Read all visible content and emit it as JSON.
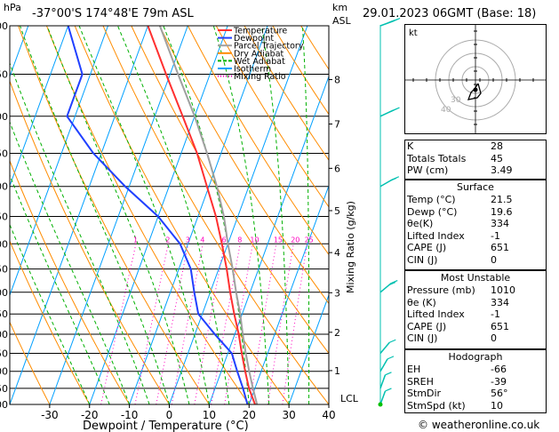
{
  "header": {
    "location": "-37°00'S  174°48'E  79m  ASL",
    "datetime": "29.01.2023  06GMT  (Base: 18)",
    "hpa_label": "hPa",
    "km_label": "km",
    "asl_label": "ASL",
    "lcl_label": "LCL"
  },
  "chart_data": {
    "type": "line",
    "xlabel": "Dewpoint / Temperature (°C)",
    "ylabel": "Mixing Ratio (g/kg)",
    "pressure_levels": [
      300,
      350,
      400,
      450,
      500,
      550,
      600,
      650,
      700,
      750,
      800,
      850,
      900,
      950,
      1000
    ],
    "x_ticks": [
      -30,
      -20,
      -10,
      0,
      10,
      20,
      30,
      40
    ],
    "xlim": [
      -40,
      40
    ],
    "ylim": [
      1000,
      300
    ],
    "y_scale": "log",
    "km_ticks": [
      {
        "label": "8",
        "p": 356
      },
      {
        "label": "7",
        "p": 410
      },
      {
        "label": "6",
        "p": 472
      },
      {
        "label": "5",
        "p": 540
      },
      {
        "label": "4",
        "p": 617
      },
      {
        "label": "3",
        "p": 701
      },
      {
        "label": "2",
        "p": 795
      },
      {
        "label": "1",
        "p": 898
      }
    ],
    "mixing_ratio_labels": [
      "1",
      "2",
      "3",
      "4",
      "6",
      "8",
      "10",
      "15",
      "20",
      "25"
    ],
    "mixing_ratio_values": [
      1,
      2,
      3,
      4,
      6,
      8,
      10,
      15,
      20,
      25
    ],
    "legend": [
      "Temperature",
      "Dewpoint",
      "Parcel Trajectory",
      "Dry Adiabat",
      "Wet Adiabat",
      "Isotherm",
      "Mixing Ratio"
    ],
    "legend_placement": "top-left",
    "colors": {
      "temperature": "#ff3030",
      "dewpoint": "#2040ff",
      "parcel": "#a0a0a0",
      "dry_adiabat": "#ff8c00",
      "wet_adiabat": "#00b000",
      "isotherm": "#00a0ff",
      "mixing_ratio": "#ff00c0",
      "wind": "#00c0b0"
    },
    "series": [
      {
        "name": "Temperature",
        "points": [
          [
            1000,
            21.5
          ],
          [
            950,
            18.5
          ],
          [
            900,
            16
          ],
          [
            850,
            13.5
          ],
          [
            800,
            11
          ],
          [
            750,
            8
          ],
          [
            700,
            5
          ],
          [
            650,
            2
          ],
          [
            600,
            -1.5
          ],
          [
            550,
            -5.5
          ],
          [
            500,
            -10.5
          ],
          [
            450,
            -16
          ],
          [
            400,
            -23
          ],
          [
            350,
            -31
          ],
          [
            300,
            -40
          ]
        ]
      },
      {
        "name": "Dewpoint",
        "points": [
          [
            1000,
            19.6
          ],
          [
            950,
            17
          ],
          [
            900,
            14
          ],
          [
            850,
            11
          ],
          [
            800,
            5
          ],
          [
            750,
            -1
          ],
          [
            700,
            -4
          ],
          [
            650,
            -7
          ],
          [
            600,
            -12
          ],
          [
            550,
            -20
          ],
          [
            500,
            -31
          ],
          [
            450,
            -42
          ],
          [
            400,
            -52
          ],
          [
            350,
            -52
          ],
          [
            300,
            -60
          ]
        ]
      },
      {
        "name": "Parcel Trajectory",
        "points": [
          [
            1000,
            22
          ],
          [
            950,
            19.5
          ],
          [
            900,
            17
          ],
          [
            850,
            14.5
          ],
          [
            800,
            12
          ],
          [
            750,
            9.5
          ],
          [
            700,
            6.5
          ],
          [
            650,
            3.5
          ],
          [
            600,
            0
          ],
          [
            550,
            -3.5
          ],
          [
            500,
            -8
          ],
          [
            450,
            -13.5
          ],
          [
            400,
            -20
          ],
          [
            350,
            -28
          ],
          [
            300,
            -37
          ]
        ]
      }
    ],
    "wind_barbs": [
      {
        "p": 300,
        "dir": 250,
        "kt": 35
      },
      {
        "p": 400,
        "dir": 245,
        "kt": 25
      },
      {
        "p": 500,
        "dir": 240,
        "kt": 20
      },
      {
        "p": 700,
        "dir": 230,
        "kt": 15
      },
      {
        "p": 850,
        "dir": 220,
        "kt": 12
      },
      {
        "p": 900,
        "dir": 210,
        "kt": 10
      },
      {
        "p": 950,
        "dir": 200,
        "kt": 10
      },
      {
        "p": 1000,
        "dir": 200,
        "kt": 8
      }
    ]
  },
  "hodograph": {
    "label": "kt",
    "ring_labels": [
      "40",
      "30"
    ]
  },
  "indices": [
    {
      "k": "K",
      "v": "28"
    },
    {
      "k": "Totals Totals",
      "v": "45"
    },
    {
      "k": "PW (cm)",
      "v": "3.49"
    }
  ],
  "surface": {
    "title": "Surface",
    "rows": [
      {
        "k": "Temp (°C)",
        "v": "21.5"
      },
      {
        "k": "Dewp (°C)",
        "v": "19.6"
      },
      {
        "k": "θe(K)",
        "v": "334"
      },
      {
        "k": "Lifted Index",
        "v": "-1"
      },
      {
        "k": "CAPE (J)",
        "v": "651"
      },
      {
        "k": "CIN (J)",
        "v": "0"
      }
    ]
  },
  "most_unstable": {
    "title": "Most Unstable",
    "rows": [
      {
        "k": "Pressure (mb)",
        "v": "1010"
      },
      {
        "k": "θe (K)",
        "v": "334"
      },
      {
        "k": "Lifted Index",
        "v": "-1"
      },
      {
        "k": "CAPE (J)",
        "v": "651"
      },
      {
        "k": "CIN (J)",
        "v": "0"
      }
    ]
  },
  "hodograph_table": {
    "title": "Hodograph",
    "rows": [
      {
        "k": "EH",
        "v": "-66"
      },
      {
        "k": "SREH",
        "v": "-39"
      },
      {
        "k": "StmDir",
        "v": "56°"
      },
      {
        "k": "StmSpd (kt)",
        "v": "10"
      }
    ]
  },
  "credit": "© weatheronline.co.uk"
}
